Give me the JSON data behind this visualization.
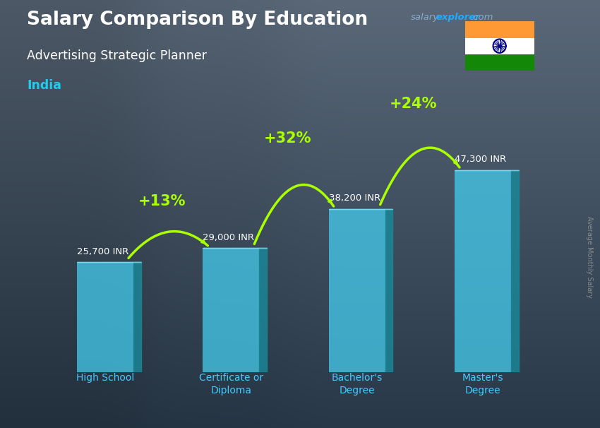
{
  "title_line1": "Salary Comparison By Education",
  "subtitle": "Advertising Strategic Planner",
  "country": "India",
  "ylabel": "Average Monthly Salary",
  "categories": [
    "High School",
    "Certificate or\nDiploma",
    "Bachelor's\nDegree",
    "Master's\nDegree"
  ],
  "values": [
    25700,
    29000,
    38200,
    47300
  ],
  "value_labels": [
    "25,700 INR",
    "29,000 INR",
    "38,200 INR",
    "47,300 INR"
  ],
  "pct_changes": [
    "+13%",
    "+32%",
    "+24%"
  ],
  "fig_width": 8.5,
  "fig_height": 6.06,
  "dpi": 100,
  "bg_color": "#4a5a6a",
  "bar_face_color": "#44ccee",
  "bar_alpha": 0.75,
  "bar_side_color": "#1a8899",
  "bar_top_color": "#88eeff",
  "title_color": "#ffffff",
  "subtitle_color": "#ffffff",
  "country_color": "#22ccee",
  "value_label_color": "#ffffff",
  "pct_color": "#aaff00",
  "xticklabel_color": "#44ccff",
  "watermark_salary_color": "#88aacc",
  "watermark_explorer_color": "#22aaff",
  "side_label_color": "#888888",
  "flag_saffron": "#FF9933",
  "flag_white": "#FFFFFF",
  "flag_green": "#138808",
  "flag_chakra": "#000080"
}
